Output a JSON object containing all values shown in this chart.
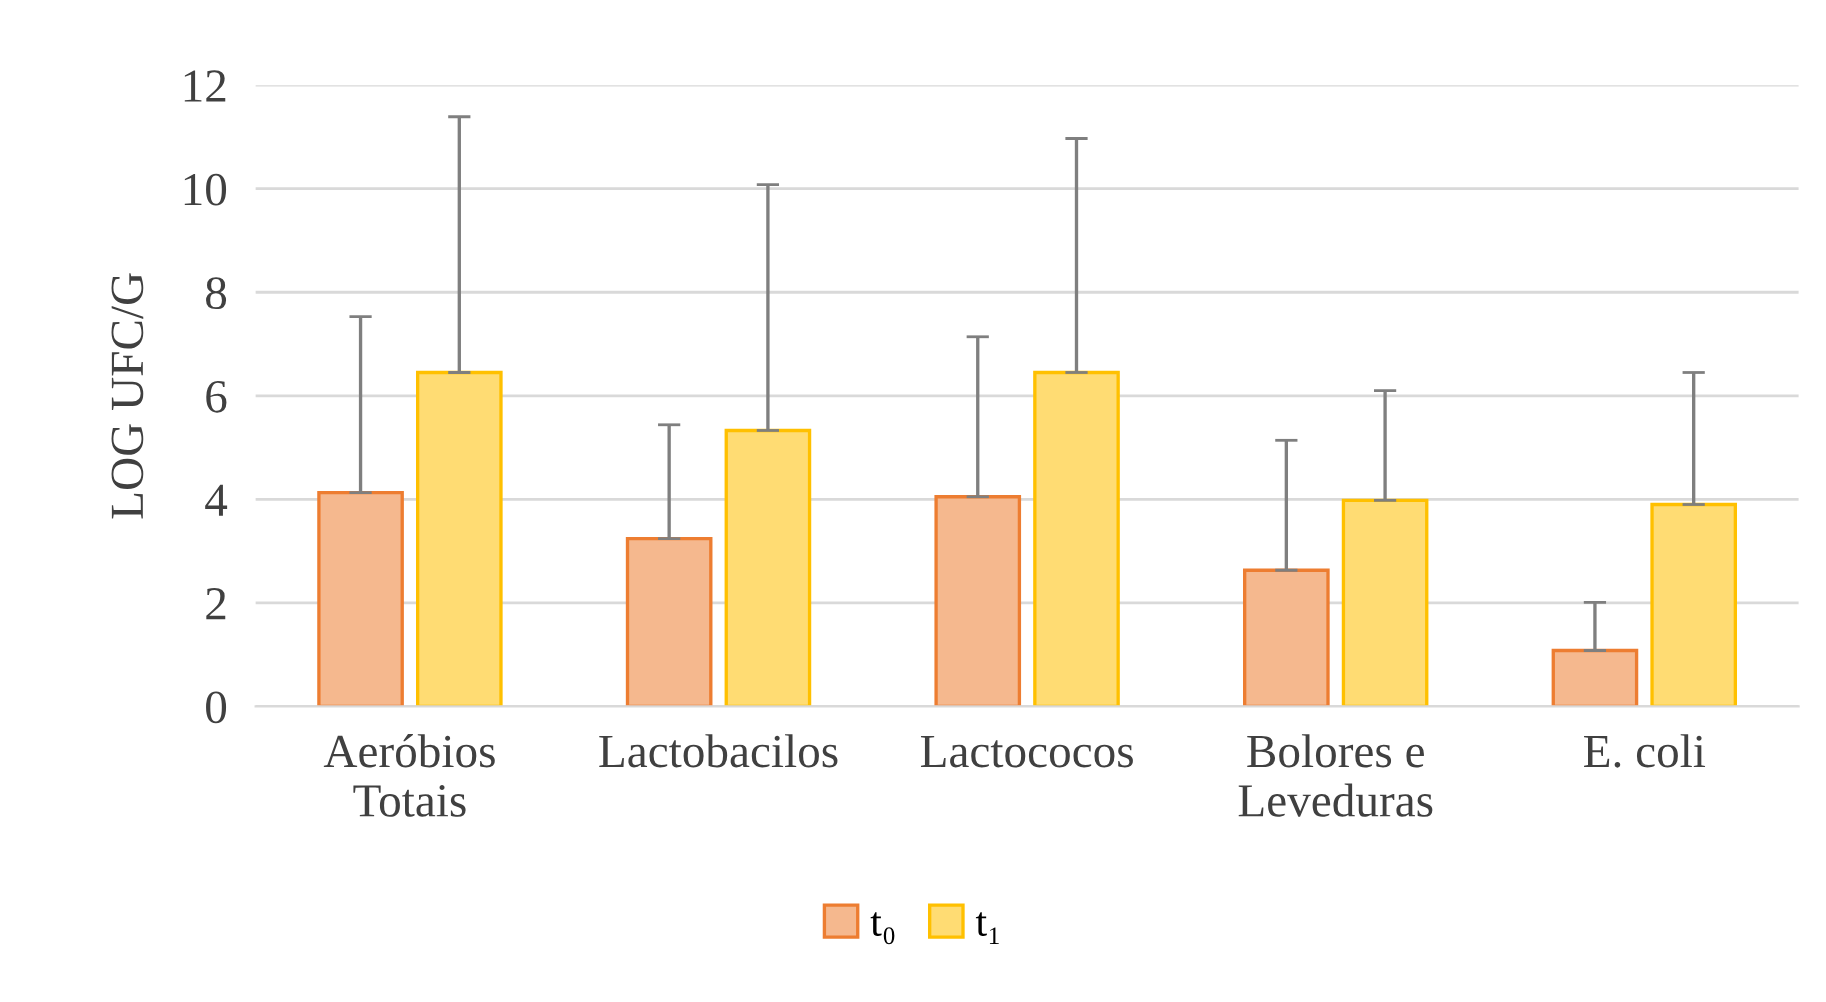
{
  "chart_data": {
    "type": "bar",
    "ylabel": "LOG UFC/G",
    "categories": [
      "Aeróbios\nTotais",
      "Lactobacilos",
      "Lactococos",
      "Bolores e\nLeveduras",
      "E. coli"
    ],
    "series": [
      {
        "name": "t₀",
        "color": "#ed7d31",
        "values": [
          4.13,
          3.24,
          4.05,
          2.63,
          1.08
        ],
        "errors": [
          [
            4.13,
            7.53
          ],
          [
            3.24,
            5.44
          ],
          [
            4.05,
            7.14
          ],
          [
            2.63,
            5.14
          ],
          [
            1.08,
            2.01
          ]
        ]
      },
      {
        "name": "t₁",
        "color": "#ffc000",
        "values": [
          6.45,
          5.33,
          6.45,
          3.98,
          3.9
        ],
        "errors": [
          [
            6.45,
            11.39
          ],
          [
            5.33,
            10.08
          ],
          [
            6.45,
            10.97
          ],
          [
            3.98,
            6.1
          ],
          [
            3.9,
            6.45
          ]
        ]
      }
    ],
    "ylim": [
      0,
      12
    ],
    "yticks": [
      0,
      2,
      4,
      6,
      8,
      10,
      12
    ],
    "grid": "y",
    "legend": "bottom"
  }
}
